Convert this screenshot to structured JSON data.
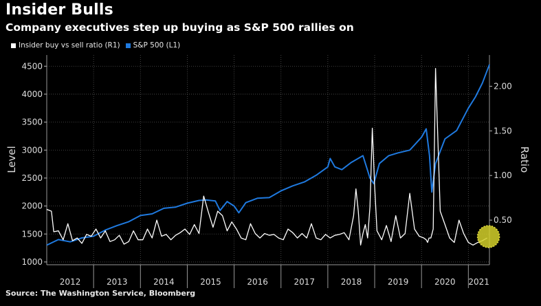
{
  "title": "Insider Bulls",
  "subtitle": "Company executives step up buying as S&P 500 rallies on",
  "legend": [
    {
      "label": "Insider buy vs sell ratio  (R1)",
      "color": "#ffffff"
    },
    {
      "label": "S&P 500 (L1)",
      "color": "#1f7ae0"
    }
  ],
  "source": "Source: The Washington Service, Bloomberg",
  "chart_data": {
    "type": "line",
    "x_start": 2012.0,
    "x_end": 2021.45,
    "x_tick_labels": [
      "2012",
      "2013",
      "2014",
      "2015",
      "2016",
      "2017",
      "2018",
      "2019",
      "2020",
      "2021"
    ],
    "ylabel_left": "Level",
    "ylabel_right": "Ratio",
    "ylim_left": [
      950,
      4700
    ],
    "ylim_right": [
      0.0,
      2.35
    ],
    "y_ticks_left": [
      1000,
      1500,
      2000,
      2500,
      3000,
      3500,
      4000,
      4500
    ],
    "y_ticks_right": [
      0.5,
      1.0,
      1.5,
      2.0
    ],
    "y_tick_labels_left": [
      "1000",
      "1500",
      "2000",
      "2500",
      "3000",
      "3500",
      "4000",
      "4500"
    ],
    "y_tick_labels_right": [
      "0.50",
      "1.00",
      "1.50",
      "2.00"
    ],
    "series": [
      {
        "name": "S&P 500",
        "axis": "left",
        "color": "#1f7ae0",
        "x": [
          2012.0,
          2012.25,
          2012.5,
          2012.75,
          2013.0,
          2013.25,
          2013.5,
          2013.75,
          2014.0,
          2014.25,
          2014.5,
          2014.75,
          2015.0,
          2015.25,
          2015.4,
          2015.6,
          2015.7,
          2015.85,
          2016.0,
          2016.1,
          2016.25,
          2016.5,
          2016.75,
          2017.0,
          2017.25,
          2017.5,
          2017.75,
          2018.0,
          2018.05,
          2018.15,
          2018.3,
          2018.5,
          2018.75,
          2018.9,
          2018.98,
          2019.1,
          2019.3,
          2019.5,
          2019.75,
          2020.0,
          2020.1,
          2020.17,
          2020.22,
          2020.3,
          2020.5,
          2020.75,
          2021.0,
          2021.15,
          2021.3,
          2021.45
        ],
        "values": [
          1300,
          1400,
          1360,
          1430,
          1460,
          1570,
          1650,
          1720,
          1830,
          1860,
          1960,
          1980,
          2050,
          2100,
          2110,
          2090,
          1920,
          2080,
          2000,
          1880,
          2060,
          2140,
          2150,
          2270,
          2360,
          2430,
          2550,
          2700,
          2850,
          2700,
          2650,
          2780,
          2900,
          2500,
          2400,
          2760,
          2900,
          2950,
          3000,
          3230,
          3380,
          2900,
          2250,
          2760,
          3200,
          3350,
          3750,
          3950,
          4200,
          4530
        ]
      },
      {
        "name": "Insider buy vs sell ratio",
        "axis": "right",
        "color": "#ffffff",
        "x": [
          2012.0,
          2012.1,
          2012.15,
          2012.25,
          2012.35,
          2012.45,
          2012.55,
          2012.65,
          2012.75,
          2012.85,
          2012.95,
          2013.05,
          2013.15,
          2013.25,
          2013.35,
          2013.45,
          2013.55,
          2013.65,
          2013.75,
          2013.85,
          2013.95,
          2014.05,
          2014.15,
          2014.25,
          2014.35,
          2014.45,
          2014.55,
          2014.65,
          2014.75,
          2014.85,
          2014.95,
          2015.05,
          2015.15,
          2015.25,
          2015.35,
          2015.45,
          2015.55,
          2015.65,
          2015.75,
          2015.85,
          2015.95,
          2016.05,
          2016.15,
          2016.25,
          2016.35,
          2016.45,
          2016.55,
          2016.65,
          2016.75,
          2016.85,
          2016.95,
          2017.05,
          2017.15,
          2017.25,
          2017.35,
          2017.45,
          2017.55,
          2017.65,
          2017.75,
          2017.85,
          2017.95,
          2018.05,
          2018.15,
          2018.25,
          2018.35,
          2018.45,
          2018.55,
          2018.6,
          2018.65,
          2018.7,
          2018.75,
          2018.8,
          2018.85,
          2018.9,
          2018.95,
          2019.0,
          2019.05,
          2019.15,
          2019.25,
          2019.35,
          2019.45,
          2019.55,
          2019.65,
          2019.75,
          2019.85,
          2019.95,
          2020.05,
          2020.1,
          2020.13,
          2020.16,
          2020.2,
          2020.25,
          2020.3,
          2020.4,
          2020.5,
          2020.6,
          2020.7,
          2020.8,
          2020.9,
          2021.0,
          2021.1,
          2021.2,
          2021.3,
          2021.4
        ],
        "values": [
          0.62,
          0.6,
          0.37,
          0.38,
          0.28,
          0.46,
          0.27,
          0.3,
          0.24,
          0.34,
          0.32,
          0.4,
          0.3,
          0.38,
          0.26,
          0.28,
          0.33,
          0.23,
          0.26,
          0.38,
          0.28,
          0.28,
          0.4,
          0.3,
          0.5,
          0.32,
          0.34,
          0.28,
          0.33,
          0.36,
          0.4,
          0.34,
          0.45,
          0.35,
          0.77,
          0.59,
          0.42,
          0.6,
          0.55,
          0.38,
          0.48,
          0.4,
          0.3,
          0.28,
          0.46,
          0.35,
          0.3,
          0.35,
          0.33,
          0.34,
          0.3,
          0.28,
          0.4,
          0.36,
          0.3,
          0.35,
          0.3,
          0.46,
          0.3,
          0.28,
          0.34,
          0.3,
          0.33,
          0.34,
          0.36,
          0.28,
          0.55,
          0.85,
          0.6,
          0.22,
          0.35,
          0.45,
          0.3,
          0.65,
          1.53,
          0.88,
          0.38,
          0.28,
          0.44,
          0.26,
          0.55,
          0.3,
          0.35,
          0.8,
          0.4,
          0.32,
          0.3,
          0.28,
          0.25,
          0.3,
          0.3,
          0.4,
          2.2,
          0.6,
          0.45,
          0.3,
          0.25,
          0.5,
          0.35,
          0.25,
          0.22,
          0.25,
          0.27,
          0.3
        ]
      }
    ]
  },
  "annotation": {
    "label": "yellow highlight circle",
    "color": "#d4d02a"
  }
}
